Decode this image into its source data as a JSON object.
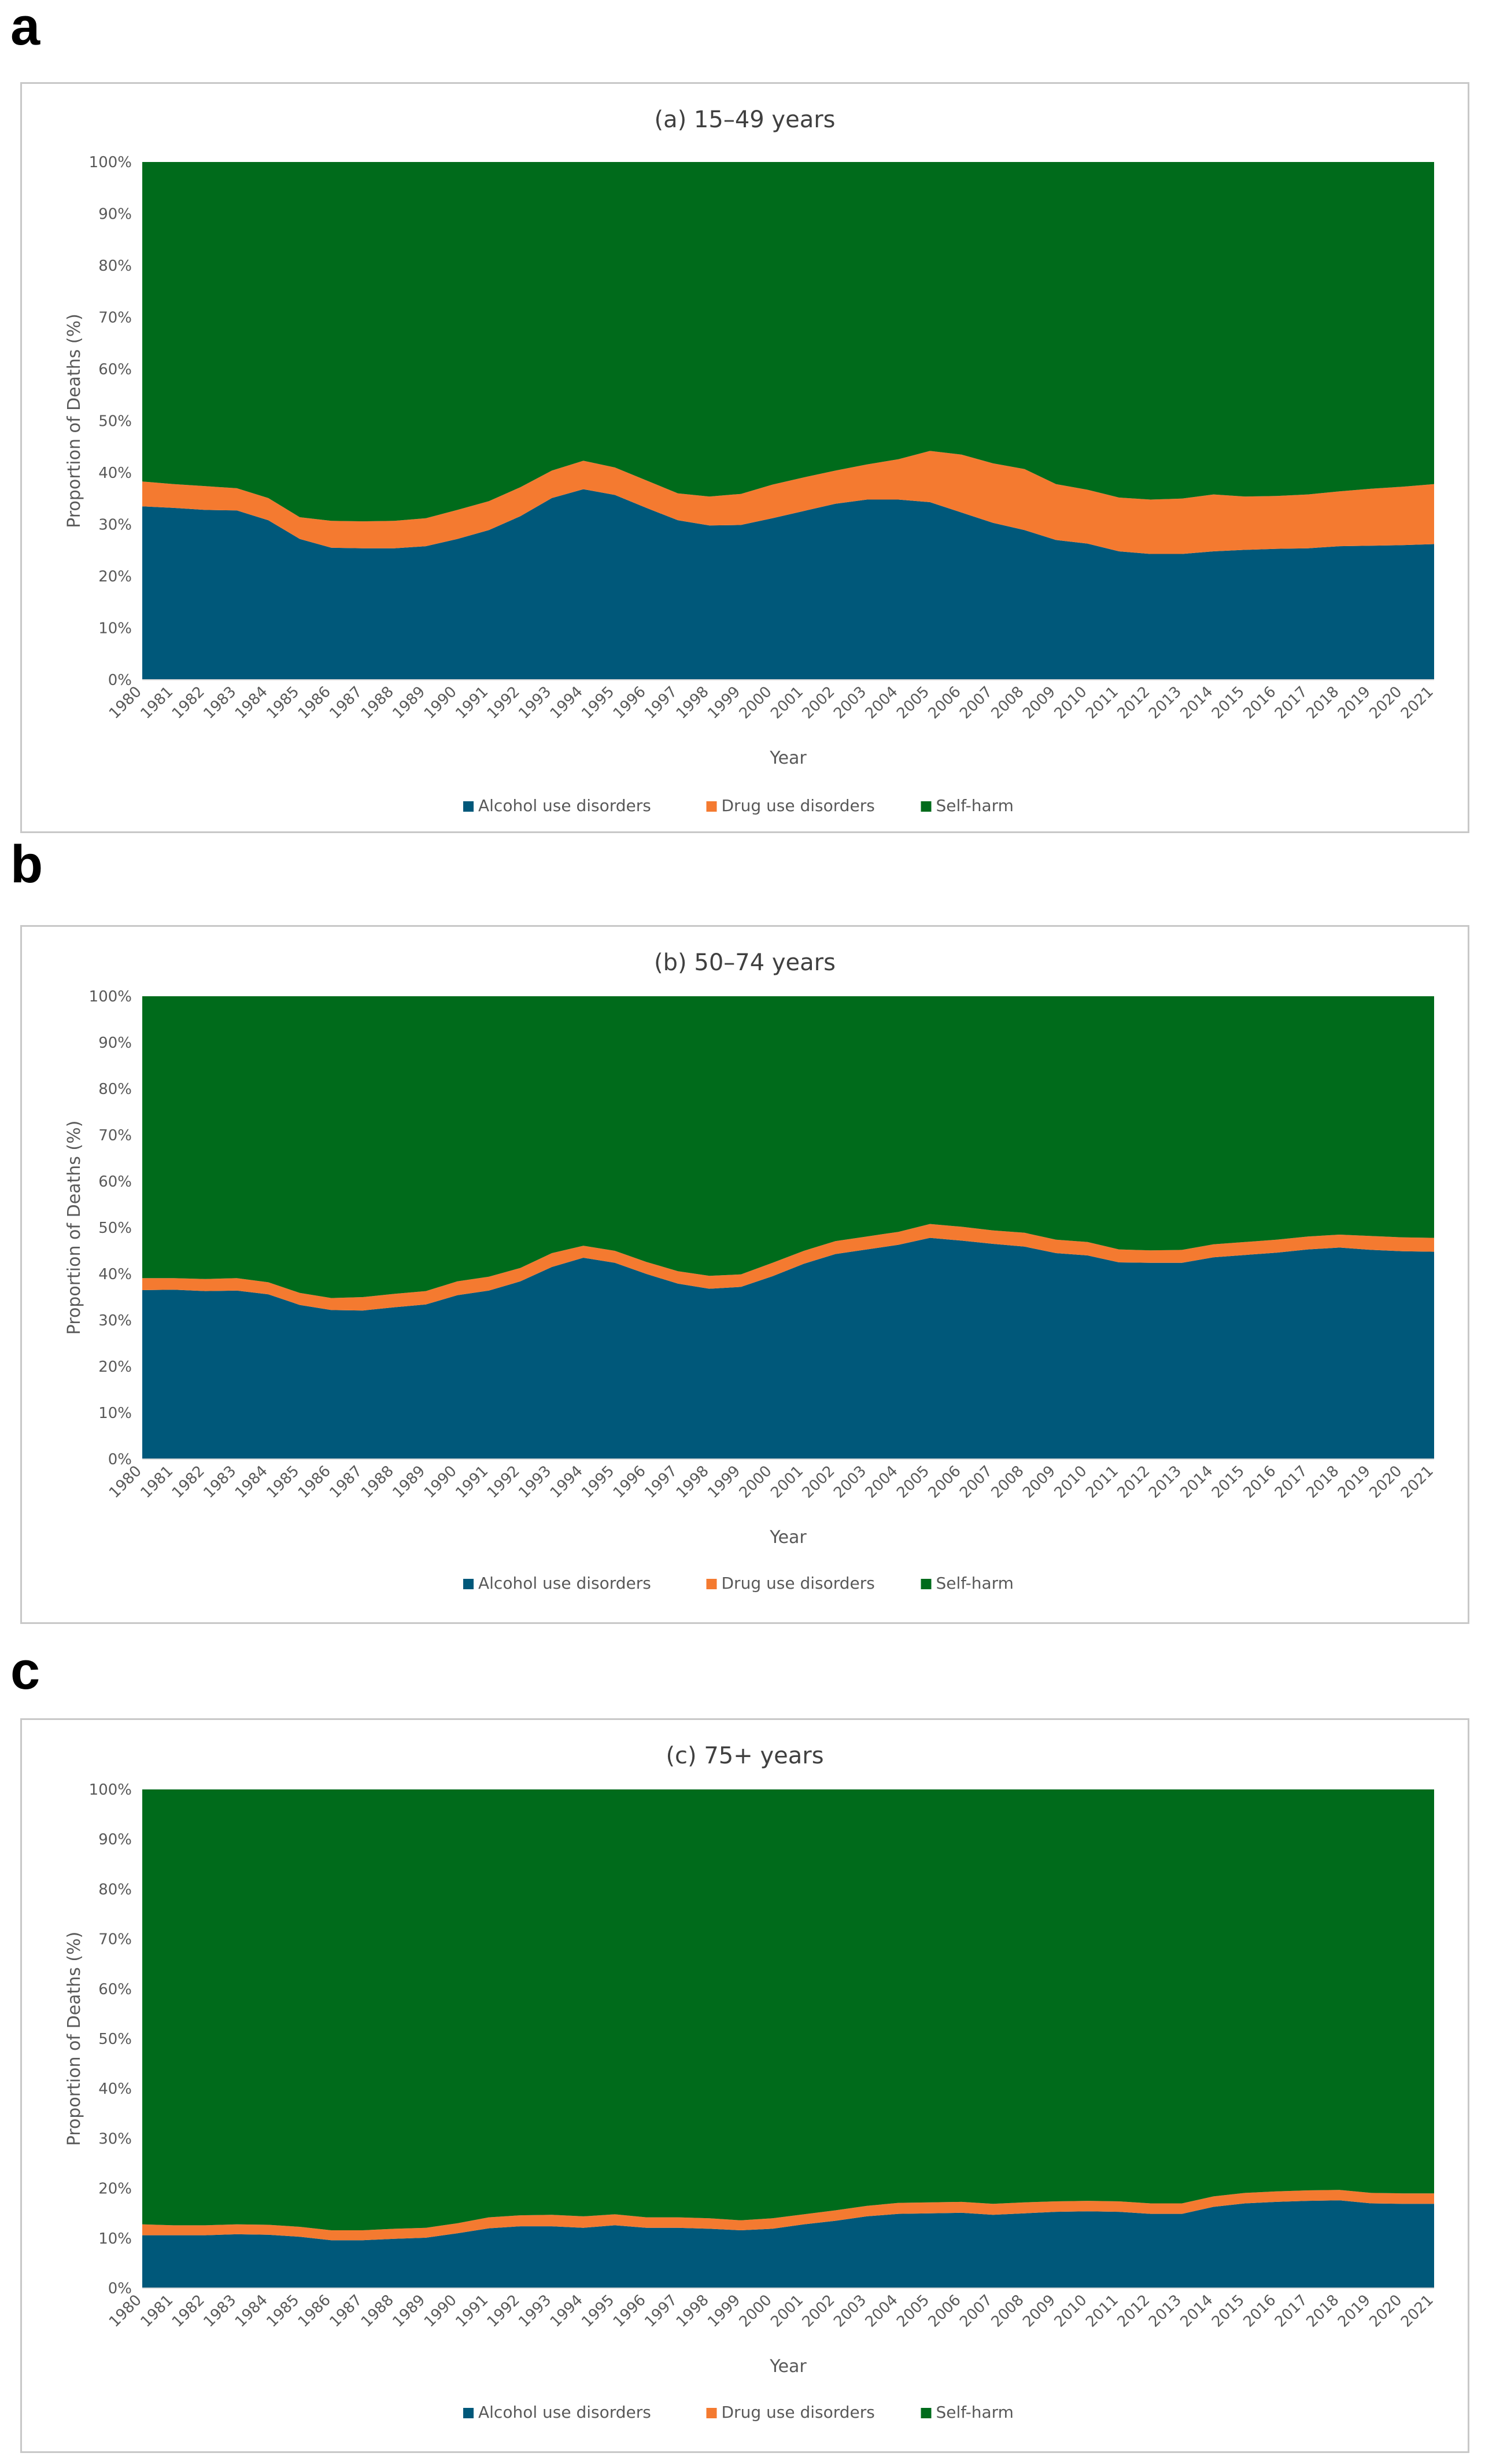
{
  "panels": [
    {
      "letter": "a"
    },
    {
      "letter": "b"
    },
    {
      "letter": "c"
    }
  ],
  "chart_data": [
    {
      "type": "area",
      "stacked": "percent",
      "title": "(a) 15–49 years",
      "xlabel": "Year",
      "ylabel": "Proportion of Deaths (%)",
      "ylim": [
        0,
        100
      ],
      "yticks": [
        "0%",
        "10%",
        "20%",
        "30%",
        "40%",
        "50%",
        "60%",
        "70%",
        "80%",
        "90%",
        "100%"
      ],
      "x": [
        "1980",
        "1981",
        "1982",
        "1983",
        "1984",
        "1985",
        "1986",
        "1987",
        "1988",
        "1989",
        "1990",
        "1991",
        "1992",
        "1993",
        "1994",
        "1995",
        "1996",
        "1997",
        "1998",
        "1999",
        "2000",
        "2001",
        "2002",
        "2003",
        "2004",
        "2005",
        "2006",
        "2007",
        "2008",
        "2009",
        "2010",
        "2011",
        "2012",
        "2013",
        "2014",
        "2015",
        "2016",
        "2017",
        "2018",
        "2019",
        "2020",
        "2021"
      ],
      "legend_position": "bottom",
      "series": [
        {
          "name": "Alcohol use disorders",
          "color": "#00587a",
          "values": [
            33.5,
            33.2,
            32.8,
            32.7,
            30.8,
            27.2,
            25.5,
            25.4,
            25.4,
            25.8,
            27.2,
            28.9,
            31.6,
            35.1,
            36.8,
            35.7,
            33.2,
            30.8,
            29.8,
            29.9,
            31.2,
            32.6,
            34.0,
            34.8,
            34.8,
            34.3,
            32.3,
            30.3,
            28.9,
            27.0,
            26.3,
            24.8,
            24.3,
            24.3,
            24.8,
            25.1,
            25.3,
            25.4,
            25.8,
            25.9,
            26.0,
            26.2
          ]
        },
        {
          "name": "Drug use disorders",
          "color": "#f47a30",
          "values": [
            4.8,
            4.6,
            4.6,
            4.3,
            4.3,
            4.2,
            5.2,
            5.2,
            5.3,
            5.4,
            5.6,
            5.6,
            5.6,
            5.3,
            5.5,
            5.3,
            5.3,
            5.2,
            5.6,
            6.0,
            6.5,
            6.5,
            6.4,
            6.8,
            7.8,
            9.9,
            11.2,
            11.5,
            11.8,
            10.8,
            10.4,
            10.4,
            10.5,
            10.7,
            11.0,
            10.3,
            10.2,
            10.4,
            10.6,
            11.0,
            11.3,
            11.6
          ]
        },
        {
          "name": "Self-harm",
          "color": "#006b1b",
          "values": [
            61.7,
            62.2,
            62.6,
            63.0,
            64.9,
            68.6,
            69.3,
            69.4,
            69.3,
            68.8,
            67.2,
            65.5,
            62.8,
            59.6,
            57.7,
            59.0,
            61.5,
            64.0,
            64.6,
            64.1,
            62.3,
            60.9,
            59.6,
            58.4,
            57.4,
            55.8,
            56.5,
            58.2,
            59.3,
            62.2,
            63.3,
            64.8,
            65.2,
            65.0,
            64.2,
            64.6,
            64.5,
            64.2,
            63.6,
            63.1,
            62.7,
            62.2
          ]
        }
      ]
    },
    {
      "type": "area",
      "stacked": "percent",
      "title": "(b) 50–74 years",
      "xlabel": "Year",
      "ylabel": "Proportion of Deaths (%)",
      "ylim": [
        0,
        100
      ],
      "yticks": [
        "0%",
        "10%",
        "20%",
        "30%",
        "40%",
        "50%",
        "60%",
        "70%",
        "80%",
        "90%",
        "100%"
      ],
      "x": [
        "1980",
        "1981",
        "1982",
        "1983",
        "1984",
        "1985",
        "1986",
        "1987",
        "1988",
        "1989",
        "1990",
        "1991",
        "1992",
        "1993",
        "1994",
        "1995",
        "1996",
        "1997",
        "1998",
        "1999",
        "2000",
        "2001",
        "2002",
        "2003",
        "2004",
        "2005",
        "2006",
        "2007",
        "2008",
        "2009",
        "2010",
        "2011",
        "2012",
        "2013",
        "2014",
        "2015",
        "2016",
        "2017",
        "2018",
        "2019",
        "2020",
        "2021"
      ],
      "legend_position": "bottom",
      "series": [
        {
          "name": "Alcohol use disorders",
          "color": "#00587a",
          "values": [
            36.5,
            36.6,
            36.3,
            36.4,
            35.6,
            33.3,
            32.2,
            32.1,
            32.8,
            33.4,
            35.4,
            36.4,
            38.4,
            41.5,
            43.5,
            42.4,
            40.0,
            37.9,
            36.8,
            37.2,
            39.5,
            42.2,
            44.3,
            45.3,
            46.3,
            47.8,
            47.2,
            46.5,
            45.9,
            44.5,
            44.0,
            42.5,
            42.4,
            42.4,
            43.6,
            44.1,
            44.6,
            45.3,
            45.7,
            45.2,
            44.9,
            44.8
          ]
        },
        {
          "name": "Drug use disorders",
          "color": "#f47a30",
          "values": [
            2.6,
            2.5,
            2.6,
            2.7,
            2.6,
            2.6,
            2.6,
            2.9,
            2.9,
            2.9,
            3.0,
            3.0,
            2.9,
            3.0,
            2.6,
            2.6,
            2.6,
            2.7,
            2.8,
            2.7,
            2.9,
            2.8,
            2.8,
            2.8,
            2.8,
            3.0,
            3.0,
            2.9,
            3.0,
            2.9,
            2.9,
            2.8,
            2.7,
            2.8,
            2.8,
            2.8,
            2.8,
            2.8,
            2.8,
            3.0,
            3.0,
            3.0
          ]
        },
        {
          "name": "Self-harm",
          "color": "#006b1b",
          "values": [
            60.9,
            60.9,
            61.1,
            60.9,
            61.8,
            64.1,
            65.2,
            65.0,
            64.3,
            63.7,
            61.6,
            60.6,
            58.7,
            55.5,
            53.9,
            55.0,
            57.4,
            59.4,
            60.4,
            60.1,
            57.6,
            55.0,
            52.9,
            51.9,
            50.9,
            49.2,
            49.8,
            50.6,
            51.1,
            52.6,
            53.1,
            54.7,
            54.9,
            54.8,
            53.6,
            53.1,
            52.6,
            51.9,
            51.5,
            51.8,
            52.1,
            52.2
          ]
        }
      ]
    },
    {
      "type": "area",
      "stacked": "percent",
      "title": "(c) 75+ years",
      "xlabel": "Year",
      "ylabel": "Proportion of Deaths (%)",
      "ylim": [
        0,
        100
      ],
      "yticks": [
        "0%",
        "10%",
        "20%",
        "30%",
        "40%",
        "50%",
        "60%",
        "70%",
        "80%",
        "90%",
        "100%"
      ],
      "x": [
        "1980",
        "1981",
        "1982",
        "1983",
        "1984",
        "1985",
        "1986",
        "1987",
        "1988",
        "1989",
        "1990",
        "1991",
        "1992",
        "1993",
        "1994",
        "1995",
        "1996",
        "1997",
        "1998",
        "1999",
        "2000",
        "2001",
        "2002",
        "2003",
        "2004",
        "2005",
        "2006",
        "2007",
        "2008",
        "2009",
        "2010",
        "2011",
        "2012",
        "2013",
        "2014",
        "2015",
        "2016",
        "2017",
        "2018",
        "2019",
        "2020",
        "2021"
      ],
      "legend_position": "bottom",
      "series": [
        {
          "name": "Alcohol use disorders",
          "color": "#00587a",
          "values": [
            10.6,
            10.6,
            10.6,
            10.8,
            10.7,
            10.3,
            9.6,
            9.6,
            9.9,
            10.1,
            11.0,
            12.0,
            12.4,
            12.4,
            12.1,
            12.6,
            12.1,
            12.1,
            11.9,
            11.6,
            11.9,
            12.8,
            13.5,
            14.4,
            14.9,
            15.0,
            15.1,
            14.7,
            15.0,
            15.3,
            15.4,
            15.3,
            14.9,
            14.9,
            16.3,
            17.0,
            17.3,
            17.5,
            17.6,
            17.0,
            16.9,
            16.9
          ]
        },
        {
          "name": "Drug use disorders",
          "color": "#f47a30",
          "values": [
            2.2,
            2.0,
            2.0,
            2.0,
            2.0,
            2.0,
            2.0,
            2.0,
            2.0,
            2.0,
            2.0,
            2.2,
            2.2,
            2.3,
            2.3,
            2.2,
            2.1,
            2.1,
            2.1,
            2.0,
            2.1,
            2.0,
            2.1,
            2.1,
            2.2,
            2.2,
            2.2,
            2.2,
            2.2,
            2.1,
            2.1,
            2.1,
            2.1,
            2.1,
            2.1,
            2.1,
            2.1,
            2.1,
            2.1,
            2.1,
            2.1,
            2.1
          ]
        },
        {
          "name": "Self-harm",
          "color": "#006b1b",
          "values": [
            87.2,
            87.4,
            87.4,
            87.2,
            87.3,
            87.7,
            88.4,
            88.4,
            88.1,
            87.9,
            87.0,
            85.8,
            85.4,
            85.3,
            85.6,
            85.2,
            85.8,
            85.8,
            86.0,
            86.4,
            86.0,
            85.2,
            84.4,
            83.5,
            82.9,
            82.8,
            82.7,
            83.1,
            82.8,
            82.6,
            82.5,
            82.6,
            83.0,
            83.0,
            81.6,
            80.9,
            80.6,
            80.4,
            80.3,
            80.9,
            81.0,
            81.0
          ]
        }
      ]
    }
  ]
}
